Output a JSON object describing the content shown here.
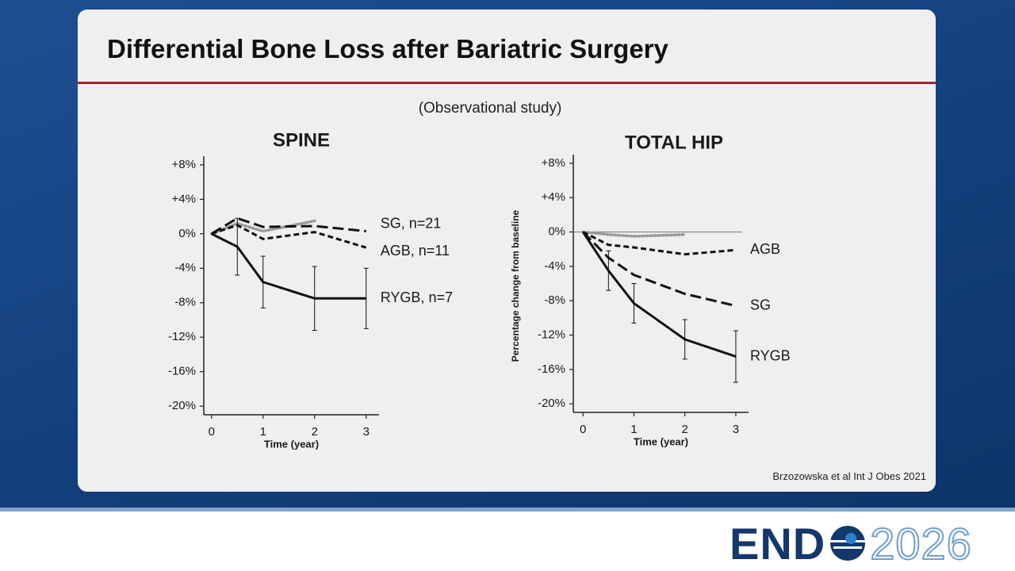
{
  "slide_title": "Differential Bone Loss after Bariatric Surgery",
  "subtitle": "(Observational study)",
  "citation": "Brzozowska et al Int J Obes 2021",
  "logo": {
    "left": "END",
    "right": "2026"
  },
  "chart_data": [
    {
      "type": "line",
      "title": "SPINE",
      "x_label": "Time (year)",
      "x": [
        0,
        0.5,
        1,
        2,
        3
      ],
      "xlim": [
        -0.15,
        3.25
      ],
      "xticks": [
        0,
        1,
        2,
        3
      ],
      "ylim": [
        -21,
        9
      ],
      "yticks": [
        {
          "value": -20,
          "label": "-20%"
        },
        {
          "value": -16,
          "label": "-16%"
        },
        {
          "value": -12,
          "label": "-12%"
        },
        {
          "value": -8,
          "label": "-8%"
        },
        {
          "value": -4,
          "label": "-4%"
        },
        {
          "value": 0,
          "label": "0%"
        },
        {
          "value": 4,
          "label": "+4%"
        },
        {
          "value": 8,
          "label": "+8%"
        }
      ],
      "series": [
        {
          "color": "#999999",
          "dash": "dotted",
          "values": [
            0,
            1.2,
            0.3,
            1.5,
            null
          ]
        },
        {
          "name": "SG, n=21",
          "color": "#111111",
          "dash": "long",
          "values": [
            0,
            1.8,
            0.8,
            0.9,
            0.3
          ]
        },
        {
          "name": "AGB, n=11",
          "color": "#111111",
          "dash": "short",
          "values": [
            0,
            1.0,
            -0.6,
            0.2,
            -1.6
          ]
        },
        {
          "name": "RYGB, n=7",
          "color": "#111111",
          "dash": "solid",
          "values": [
            0,
            -1.5,
            -5.6,
            -7.5,
            -7.5
          ],
          "errors": [
            0,
            3.3,
            3.0,
            3.7,
            3.5
          ]
        }
      ]
    },
    {
      "type": "line",
      "title": "TOTAL HIP",
      "x_label": "Time (year)",
      "y_label": "Percentage change from baseline",
      "x": [
        0,
        0.5,
        1,
        2,
        3
      ],
      "xlim": [
        -0.19,
        3.25
      ],
      "xticks": [
        0,
        1,
        2,
        3
      ],
      "ylim": [
        -21,
        9
      ],
      "zero_line": true,
      "yticks": [
        {
          "value": -20,
          "label": "-20%"
        },
        {
          "value": -16,
          "label": "-16%"
        },
        {
          "value": -12,
          "label": "-12%"
        },
        {
          "value": -8,
          "label": "-8%"
        },
        {
          "value": -4,
          "label": "-4%"
        },
        {
          "value": 0,
          "label": "0%"
        },
        {
          "value": 4,
          "label": "+4%"
        },
        {
          "value": 8,
          "label": "+8%"
        }
      ],
      "series": [
        {
          "color": "#999999",
          "dash": "dotted",
          "values": [
            0,
            -0.3,
            -0.5,
            -0.3,
            null
          ]
        },
        {
          "name": "AGB",
          "color": "#111111",
          "dash": "short",
          "values": [
            0,
            -1.5,
            -1.8,
            -2.6,
            -2.1
          ]
        },
        {
          "name": "SG",
          "color": "#111111",
          "dash": "long",
          "values": [
            0,
            -3.0,
            -5.0,
            -7.2,
            -8.6
          ]
        },
        {
          "name": "RYGB",
          "color": "#111111",
          "dash": "solid",
          "values": [
            0,
            -4.5,
            -8.3,
            -12.5,
            -14.5
          ],
          "errors": [
            0,
            2.3,
            2.3,
            2.3,
            3.0
          ]
        }
      ]
    }
  ]
}
